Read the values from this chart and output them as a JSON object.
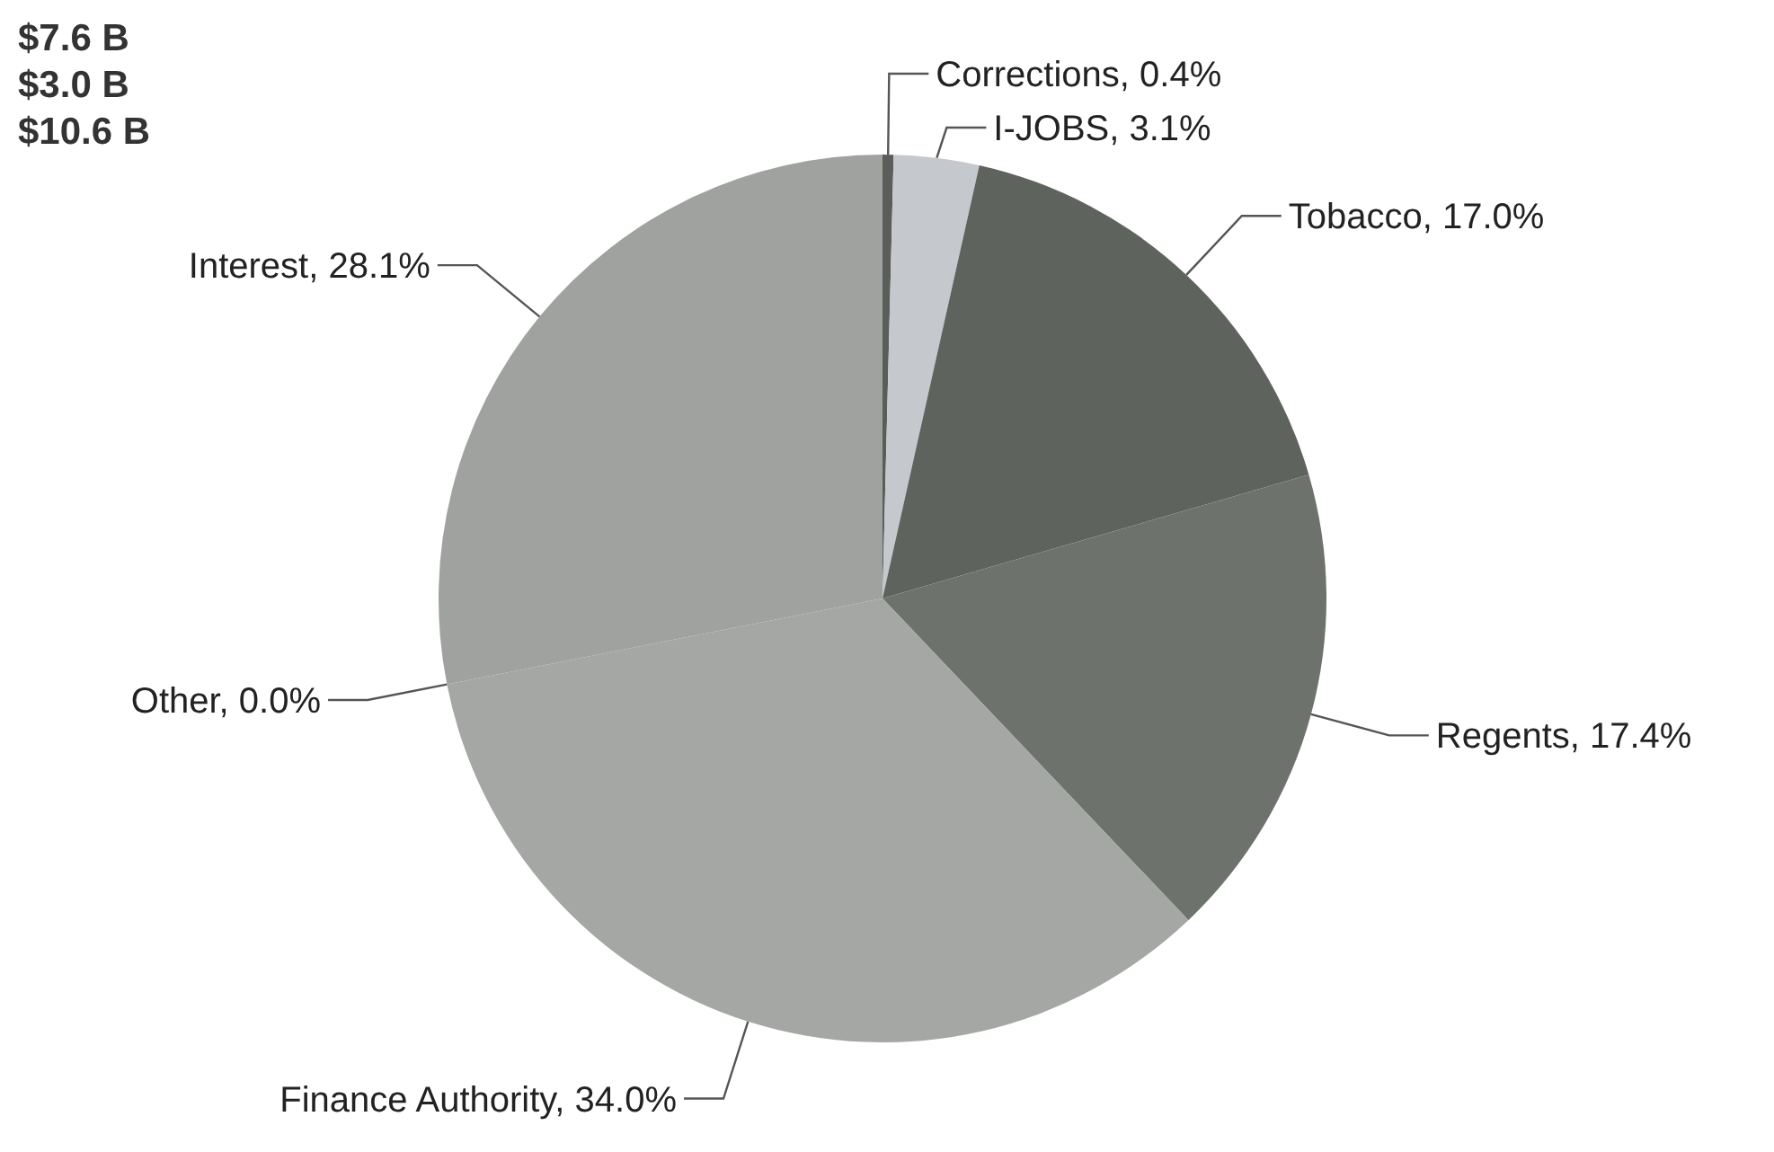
{
  "chart_data": {
    "type": "pie",
    "categories": [
      "Corrections",
      "I-JOBS",
      "Tobacco",
      "Regents",
      "Finance Authority",
      "Other",
      "Interest"
    ],
    "values": [
      0.4,
      3.1,
      17.0,
      17.4,
      34.0,
      0.0,
      28.1
    ],
    "value_labels": [
      "0.4%",
      "3.1%",
      "17.0%",
      "17.4%",
      "34.0%",
      "0.0%",
      "28.1%"
    ],
    "colors": [
      "#5a5d5a",
      "#c5c8cc",
      "#5f635e",
      "#6e726d",
      "#a4a7a4",
      "#a0a3a0",
      "#9fa29f"
    ],
    "annotations": [
      "$7.6 B",
      "$3.0 B",
      "$10.6 B"
    ]
  }
}
